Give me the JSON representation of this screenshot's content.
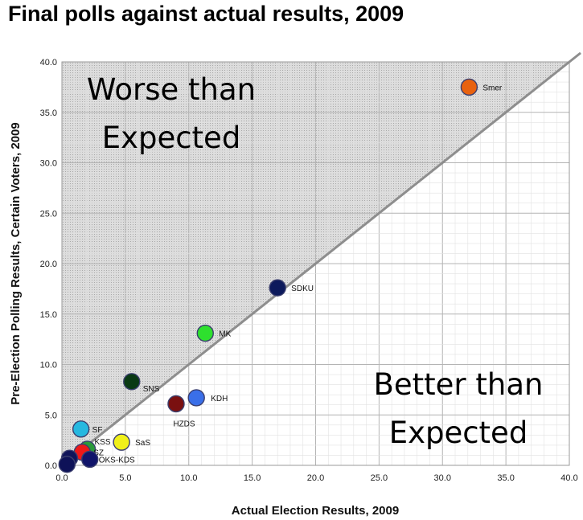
{
  "title": "Final polls against actual results, 2009",
  "chart_data": {
    "type": "scatter",
    "xlabel": "Actual Election Results, 2009",
    "ylabel": "Pre-Election Polling Results, Certain Voters, 2009",
    "xlim": [
      0,
      40
    ],
    "ylim": [
      0,
      40
    ],
    "xticks": [
      "0.0",
      "5.0",
      "10.0",
      "15.0",
      "20.0",
      "25.0",
      "30.0",
      "35.0",
      "40.0"
    ],
    "yticks": [
      "0.0",
      "5.0",
      "10.0",
      "15.0",
      "20.0",
      "25.0",
      "30.0",
      "35.0",
      "40.0"
    ],
    "grid": true,
    "reference_line": "y = x",
    "annotations": [
      {
        "text_lines": [
          "Worse than",
          "Expected"
        ],
        "region": "above diagonal"
      },
      {
        "text_lines": [
          "Better than",
          "Expected"
        ],
        "region": "below diagonal"
      }
    ],
    "points": [
      {
        "label": "Smer",
        "x": 32.1,
        "y": 37.5,
        "color": "#e8620f"
      },
      {
        "label": "SDKU",
        "x": 17.0,
        "y": 17.6,
        "color": "#0d1a5c"
      },
      {
        "label": "MK",
        "x": 11.3,
        "y": 13.1,
        "color": "#2ee02e"
      },
      {
        "label": "SNS",
        "x": 5.5,
        "y": 8.3,
        "color": "#0a3a14"
      },
      {
        "label": "KDH",
        "x": 10.6,
        "y": 6.7,
        "color": "#3a6fe8"
      },
      {
        "label": "HZDS",
        "x": 9.0,
        "y": 6.1,
        "color": "#7a1010"
      },
      {
        "label": "SF",
        "x": 1.5,
        "y": 3.6,
        "color": "#26b8e0"
      },
      {
        "label": "SaS",
        "x": 4.7,
        "y": 2.3,
        "color": "#f0f01a"
      },
      {
        "label": "KSS",
        "x": 2.0,
        "y": 1.6,
        "color": "#2a9a3a"
      },
      {
        "label": "SZ",
        "x": 1.6,
        "y": 1.3,
        "color": "#ee1818"
      },
      {
        "label": "OKS-KDS",
        "x": 2.2,
        "y": 0.6,
        "color": "#10146a"
      },
      {
        "label": "",
        "x": 0.6,
        "y": 0.7,
        "color": "#10145a"
      },
      {
        "label": "",
        "x": 0.4,
        "y": 0.1,
        "color": "#0e1258"
      }
    ]
  }
}
